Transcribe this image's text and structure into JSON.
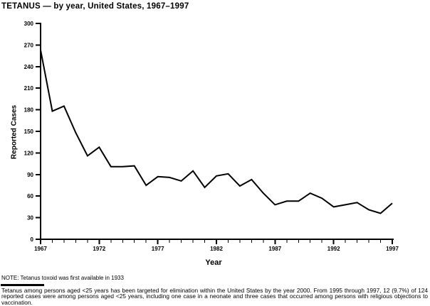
{
  "chart_data": {
    "type": "line",
    "title": "TETANUS — by year, United States, 1967–1997",
    "xlabel": "Year",
    "ylabel": "Reported Cases",
    "x": [
      1967,
      1968,
      1969,
      1970,
      1971,
      1972,
      1973,
      1974,
      1975,
      1976,
      1977,
      1978,
      1979,
      1980,
      1981,
      1982,
      1983,
      1984,
      1985,
      1986,
      1987,
      1988,
      1989,
      1990,
      1991,
      1992,
      1993,
      1994,
      1995,
      1996,
      1997
    ],
    "values": [
      263,
      178,
      185,
      148,
      116,
      128,
      101,
      101,
      102,
      75,
      87,
      86,
      81,
      95,
      72,
      88,
      91,
      74,
      83,
      64,
      48,
      53,
      53,
      64,
      57,
      45,
      48,
      51,
      41,
      36,
      50
    ],
    "ylim": [
      0,
      300
    ],
    "ytick_interval": 30,
    "ytick_labels": [
      "0",
      "30",
      "60",
      "90",
      "120",
      "150",
      "180",
      "210",
      "240",
      "270",
      "300"
    ],
    "xtick_labeled_years": [
      1967,
      1972,
      1977,
      1982,
      1987,
      1992,
      1997
    ],
    "grid": false,
    "legend": "none",
    "line_color": "#000000",
    "axis_color": "#000000"
  },
  "note": "NOTE: Tetanus toxoid was first available in 1933",
  "footnote": "Tetanus among persons aged <25 years has been targeted for elimination within the United States by the year 2000. From 1995 through 1997, 12 (9.7%) of 124 reported cases were among persons aged <25 years, including one case in a neonate and three cases that occurred among persons with religious objections to vaccination."
}
